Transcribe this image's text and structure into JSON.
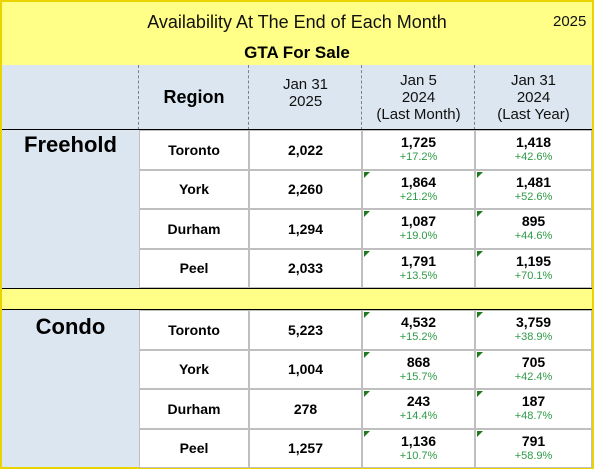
{
  "header": {
    "title": "Availability At The End of Each Month",
    "year": "2025",
    "subtitle": "GTA For Sale"
  },
  "columns": {
    "region": "Region",
    "current": [
      "Jan 31",
      "2025"
    ],
    "last_month": [
      "Jan 5",
      "2024",
      "(Last Month)"
    ],
    "last_year": [
      "Jan 31",
      "2024",
      "(Last Year)"
    ]
  },
  "groups": [
    {
      "name": "Freehold",
      "rows": [
        {
          "region": "Toronto",
          "current": "2,022",
          "last_month": "1,725",
          "last_month_change": "+17.2%",
          "last_year": "1,418",
          "last_year_change": "+42.6%"
        },
        {
          "region": "York",
          "current": "2,260",
          "last_month": "1,864",
          "last_month_change": "+21.2%",
          "last_year": "1,481",
          "last_year_change": "+52.6%"
        },
        {
          "region": "Durham",
          "current": "1,294",
          "last_month": "1,087",
          "last_month_change": "+19.0%",
          "last_year": "895",
          "last_year_change": "+44.6%"
        },
        {
          "region": "Peel",
          "current": "2,033",
          "last_month": "1,791",
          "last_month_change": "+13.5%",
          "last_year": "1,195",
          "last_year_change": "+70.1%"
        }
      ]
    },
    {
      "name": "Condo",
      "rows": [
        {
          "region": "Toronto",
          "current": "5,223",
          "last_month": "4,532",
          "last_month_change": "+15.2%",
          "last_year": "3,759",
          "last_year_change": "+38.9%"
        },
        {
          "region": "York",
          "current": "1,004",
          "last_month": "868",
          "last_month_change": "+15.7%",
          "last_year": "705",
          "last_year_change": "+42.4%"
        },
        {
          "region": "Durham",
          "current": "278",
          "last_month": "243",
          "last_month_change": "+14.4%",
          "last_year": "187",
          "last_year_change": "+48.7%"
        },
        {
          "region": "Peel",
          "current": "1,257",
          "last_month": "1,136",
          "last_month_change": "+10.7%",
          "last_year": "791",
          "last_year_change": "+58.9%"
        }
      ]
    }
  ]
}
